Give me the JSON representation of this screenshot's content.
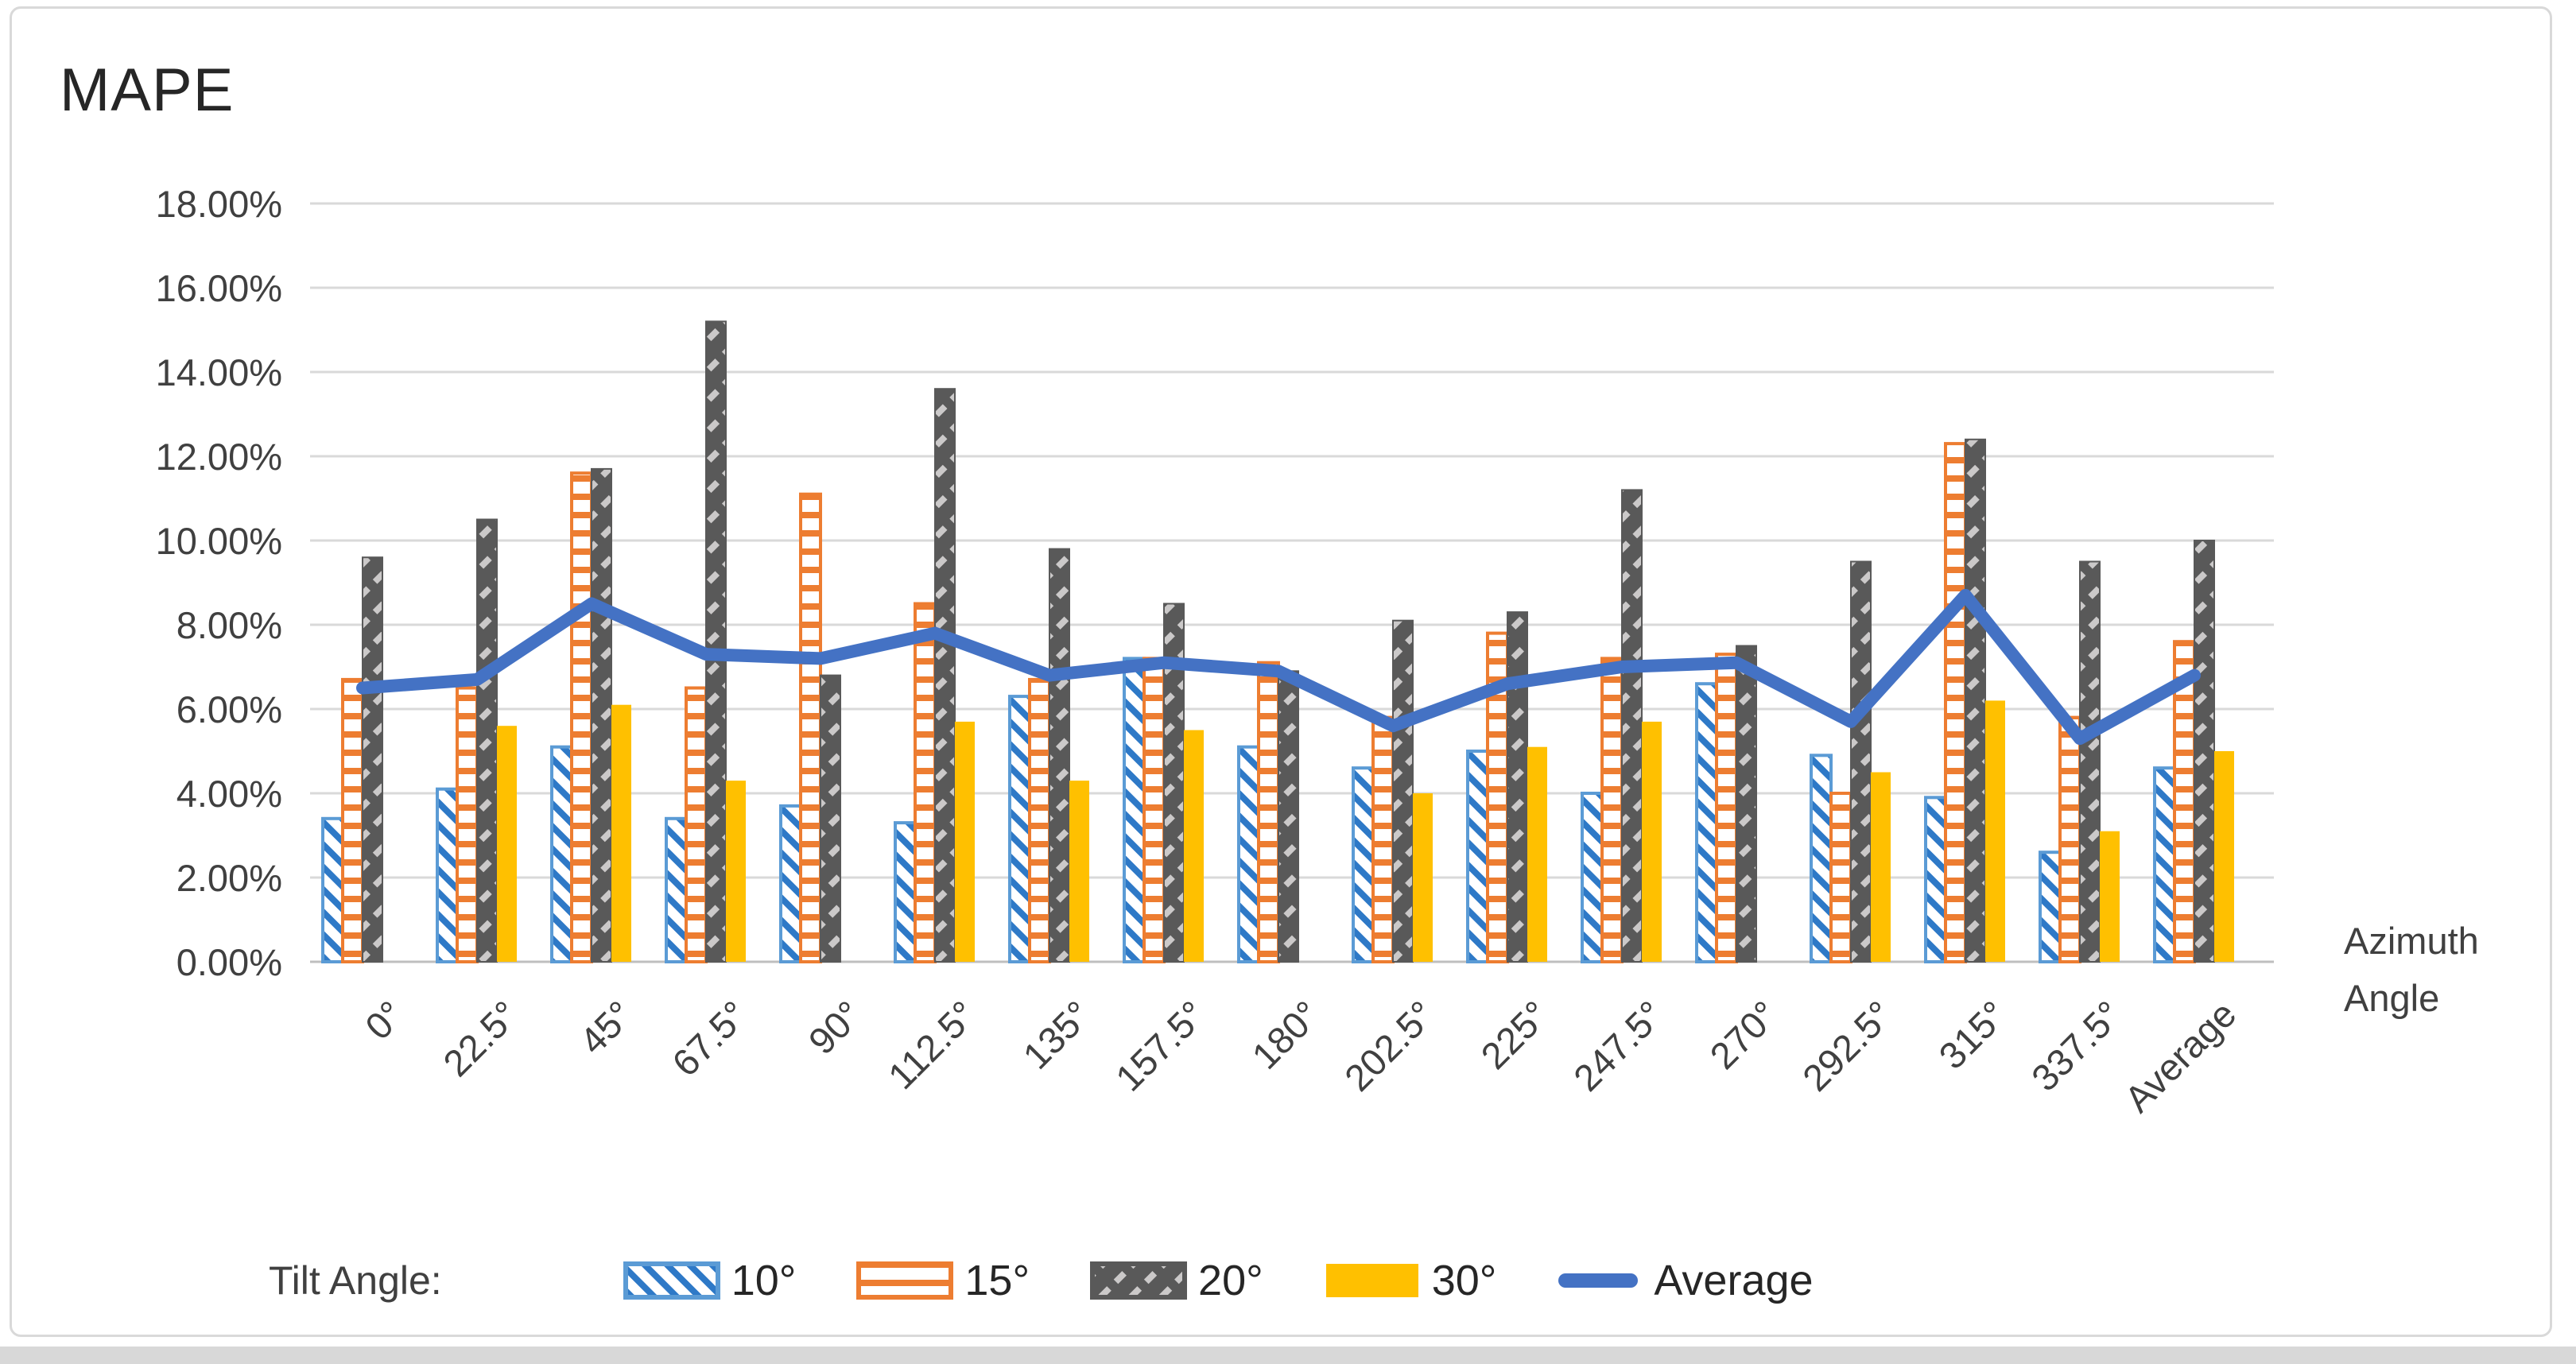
{
  "chart_data": {
    "type": "bar",
    "title": "MAPE",
    "legend_title": "Tilt Angle:",
    "xlabel_lines": [
      "Azimuth",
      "Angle"
    ],
    "categories": [
      "0°",
      "22.5°",
      "45°",
      "67.5°",
      "90°",
      "112.5°",
      "135°",
      "157.5°",
      "180°",
      "202.5°",
      "225°",
      "247.5°",
      "270°",
      "292.5°",
      "315°",
      "337.5°",
      "Average"
    ],
    "y_ticks": [
      "0.00%",
      "2.00%",
      "4.00%",
      "6.00%",
      "8.00%",
      "10.00%",
      "12.00%",
      "14.00%",
      "16.00%",
      "18.00%"
    ],
    "ylim": [
      0,
      18
    ],
    "grid": true,
    "legend_position": "bottom",
    "units": "percent",
    "series": [
      {
        "name": "10°",
        "kind": "bar",
        "pattern": "diagonal-hatch",
        "color": "#5B9BD5",
        "hatch_color": "#2E79C7",
        "values": [
          3.4,
          4.1,
          5.1,
          3.4,
          3.7,
          3.3,
          6.3,
          7.2,
          5.1,
          4.6,
          5.0,
          4.0,
          6.6,
          4.9,
          3.9,
          2.6,
          4.6
        ]
      },
      {
        "name": "15°",
        "kind": "bar",
        "pattern": "horizontal-lines",
        "color": "#ED7D31",
        "hatch_color": "#ED7D31",
        "values": [
          6.7,
          6.5,
          11.6,
          6.5,
          11.1,
          8.5,
          6.7,
          7.2,
          7.1,
          5.8,
          7.8,
          7.2,
          7.3,
          4.0,
          12.3,
          5.8,
          7.6
        ]
      },
      {
        "name": "20°",
        "kind": "bar",
        "pattern": "diagonal-dash",
        "color": "#595959",
        "hatch_color": "#CBC9C9",
        "values": [
          9.6,
          10.5,
          11.7,
          15.2,
          6.8,
          13.6,
          9.8,
          8.5,
          6.9,
          8.1,
          8.3,
          11.2,
          7.5,
          9.5,
          12.4,
          9.5,
          10.0
        ]
      },
      {
        "name": "30°",
        "kind": "bar",
        "pattern": "solid",
        "color": "#FFC000",
        "hatch_color": "#FFC000",
        "values": [
          null,
          5.6,
          6.1,
          4.3,
          null,
          5.7,
          4.3,
          5.5,
          null,
          4.0,
          5.1,
          5.7,
          null,
          4.5,
          6.2,
          3.1,
          5.0
        ]
      },
      {
        "name": "Average",
        "kind": "line",
        "color": "#4472C4",
        "values": [
          6.5,
          6.7,
          8.5,
          7.3,
          7.2,
          7.8,
          6.8,
          7.1,
          6.9,
          5.6,
          6.6,
          7.0,
          7.1,
          5.7,
          8.7,
          5.3,
          6.8
        ]
      }
    ],
    "colors": {
      "gridline": "#D9D9D9",
      "axis_line": "#BFBFBF",
      "text": "#404040",
      "title_text": "#262626"
    }
  }
}
